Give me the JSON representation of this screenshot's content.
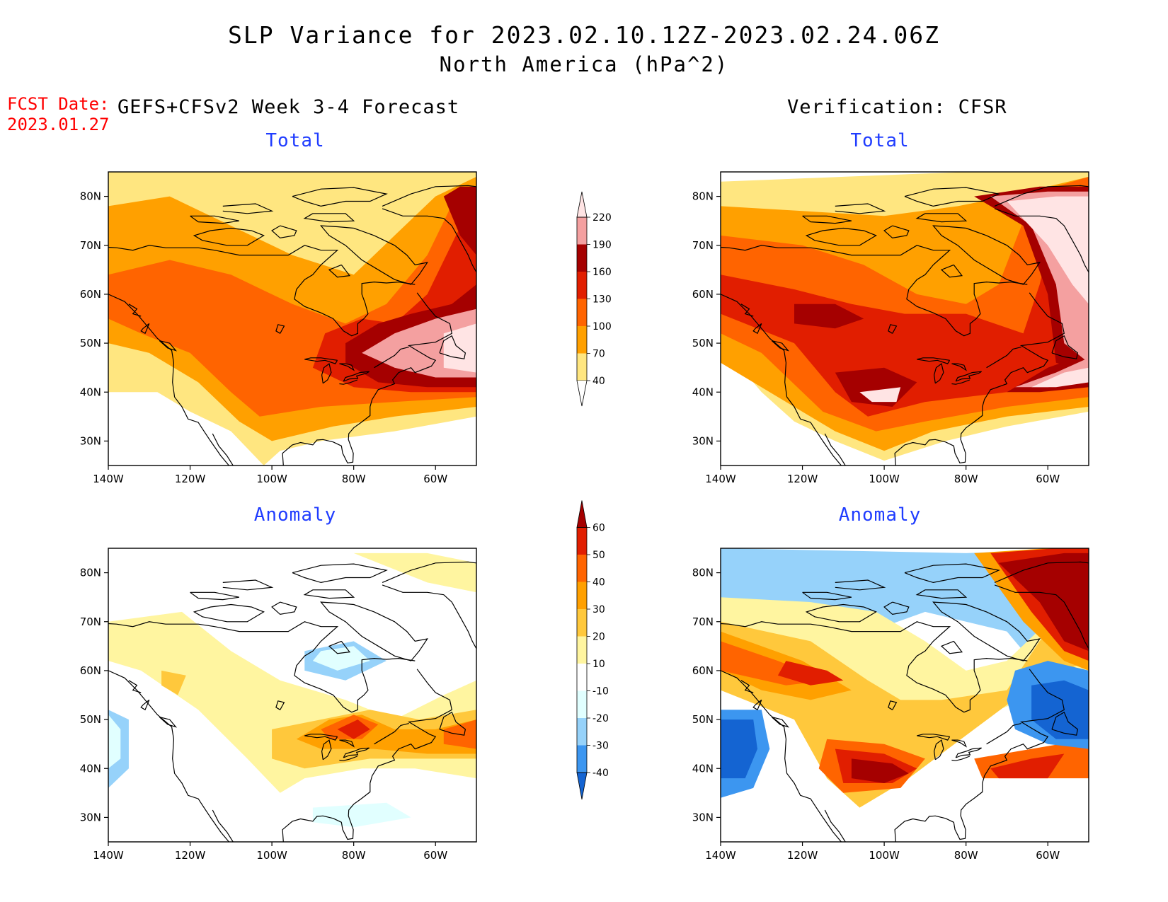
{
  "title": {
    "line1": "SLP Variance for 2023.02.10.12Z-2023.02.24.06Z",
    "line2": "North America (hPa^2)"
  },
  "fcst_date": {
    "label": "FCST Date:",
    "value": "2023.01.27"
  },
  "columns": {
    "left": "GEFS+CFSv2 Week 3-4 Forecast",
    "right": "Verification: CFSR"
  },
  "panels": {
    "top_left": {
      "title": "Total"
    },
    "top_right": {
      "title": "Total"
    },
    "bottom_left": {
      "title": "Anomaly"
    },
    "bottom_right": {
      "title": "Anomaly"
    }
  },
  "axes": {
    "lon_ticks": [
      "140W",
      "120W",
      "100W",
      "80W",
      "60W"
    ],
    "lat_ticks": [
      "80N",
      "70N",
      "60N",
      "50N",
      "40N",
      "30N"
    ],
    "lon_range": [
      -140,
      -50
    ],
    "lat_range": [
      25,
      85
    ]
  },
  "colorbars": {
    "total": {
      "labels": [
        "40",
        "70",
        "100",
        "130",
        "160",
        "190",
        "220"
      ],
      "colors": [
        "#ffe680",
        "#ffa000",
        "#ff6400",
        "#e11e00",
        "#a50000",
        "#f4a0a0",
        "#ffe4e4"
      ]
    },
    "anomaly": {
      "labels": [
        "-40",
        "-30",
        "-20",
        "-10",
        "10",
        "20",
        "30",
        "40",
        "50",
        "60"
      ],
      "colors": [
        "#1464d2",
        "#3c96f0",
        "#96d2fa",
        "#e1ffff",
        "#ffffff",
        "#fff5a0",
        "#ffc83c",
        "#ffa000",
        "#ff6400",
        "#e11e00",
        "#a50000"
      ]
    }
  }
}
